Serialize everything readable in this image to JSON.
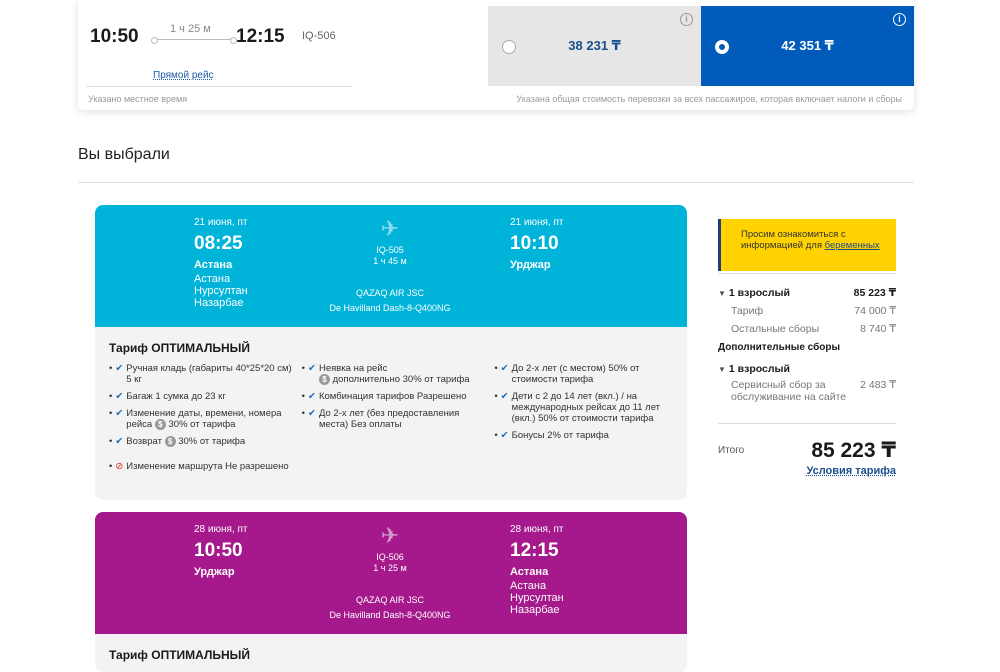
{
  "top_option": {
    "departure": "10:50",
    "duration": "1 ч 25 м",
    "arrival": "12:15",
    "flight_no": "IQ-506",
    "direct": "Прямой рейс",
    "local_time_note": "Указано местное время",
    "fares": [
      {
        "price": "38 231 ₸",
        "selected": false
      },
      {
        "price": "42 351 ₸",
        "selected": true
      }
    ],
    "total_note": "Указана общая стоимость перевозки за всех пассажиров, которая включает налоги и сборы"
  },
  "chosen": {
    "title": "Вы выбрали"
  },
  "segments": [
    {
      "dep_date": "21 июня, пт",
      "dep_time": "08:25",
      "dep_city": "Астана",
      "dep_airport": "Астана Нурсултан Назарбае",
      "flight_no": "IQ-505",
      "duration": "1 ч 45 м",
      "airline": "QAZAQ AIR JSC",
      "aircraft": "De Havilland Dash-8-Q400NG",
      "arr_date": "21 июня, пт",
      "arr_time": "10:10",
      "arr_city": "Урджар",
      "arr_airport": "",
      "tariff": "Тариф ОПТИМАЛЬНЫЙ",
      "features": [
        [
          "Ручная кладь (габариты 40*25*20 см) 5 кг",
          "Багаж 1 сумка до 23 кг",
          "Изменение даты, времени, номера рейса",
          "30% от тарифа",
          "Возврат",
          "30% от тарифа",
          "Изменение маршрута Не разрешено"
        ],
        [
          "Неявка на рейс",
          "дополнительно 30% от тарифа",
          "Комбинация тарифов Разрешено",
          "До 2-х лет (без предоставления места) Без оплаты"
        ],
        [
          "До 2-х лет (с местом) 50% от стоимости тарифа",
          "Дети с 2 до 14 лет (вкл.) / на международных рейсах до 11 лет (вкл.) 50% от стоимости тарифа",
          "Бонусы 2% от тарифа"
        ]
      ]
    },
    {
      "dep_date": "28 июня, пт",
      "dep_time": "10:50",
      "dep_city": "Урджар",
      "dep_airport": "",
      "flight_no": "IQ-506",
      "duration": "1 ч 25 м",
      "airline": "QAZAQ AIR JSC",
      "aircraft": "De Havilland Dash-8-Q400NG",
      "arr_date": "28 июня, пт",
      "arr_time": "12:15",
      "arr_city": "Астана",
      "arr_airport": "Астана Нурсултан Назарбае",
      "tariff": "Тариф ОПТИМАЛЬНЫЙ"
    }
  ],
  "summary": {
    "notice_text": "Просим ознакомиться с информацией для",
    "notice_link": "беременных",
    "adult1": "1 взрослый",
    "adult1_price": "85 223 ₸",
    "tariff_label": "Тариф",
    "tariff_price": "74 000 ₸",
    "fees_label": "Остальные сборы",
    "fees_price": "8 740 ₸",
    "extra_title": "Дополнительные сборы",
    "adult2": "1 взрослый",
    "service_label": "Сервисный сбор за обслуживание на сайте",
    "service_price": "2 483 ₸",
    "total_label": "Итого",
    "total_value": "85 223 ₸",
    "conditions_link": "Условия тарифа"
  }
}
